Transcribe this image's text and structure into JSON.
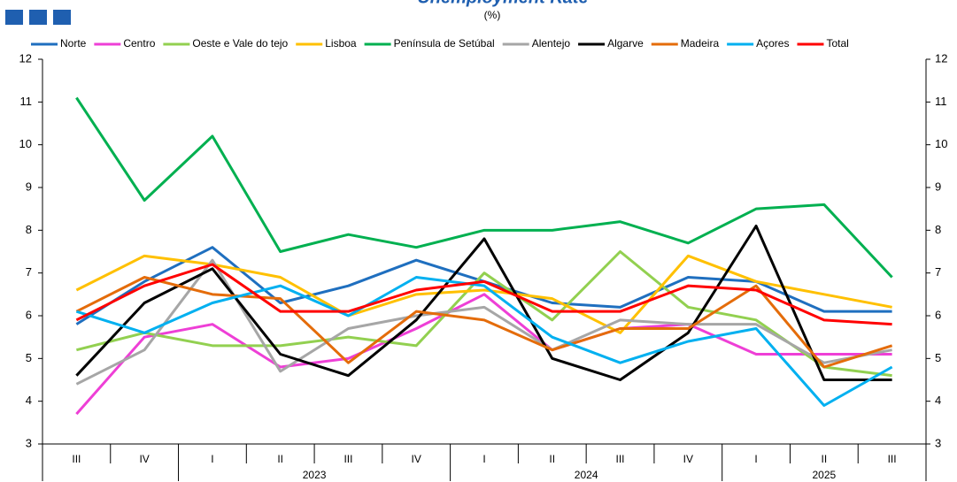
{
  "chart_data": {
    "type": "line",
    "title": "Unemployment Rate",
    "subtitle": "(%)",
    "categories": [
      "III",
      "IV",
      "I",
      "II",
      "III",
      "IV",
      "I",
      "II",
      "III",
      "IV",
      "I",
      "II",
      "III"
    ],
    "years": [
      null,
      null,
      "2023",
      "2023",
      "2023",
      "2023",
      "2024",
      "2024",
      "2024",
      "2024",
      "2025",
      "2025",
      "2025"
    ],
    "ylim": [
      3,
      12
    ],
    "yticks": [
      3,
      4,
      5,
      6,
      7,
      8,
      9,
      10,
      11,
      12
    ],
    "right_axis": true,
    "grid": false,
    "series": [
      {
        "name": "Norte",
        "color": "#1f6fbf",
        "values": [
          5.8,
          6.8,
          7.6,
          6.3,
          6.7,
          7.3,
          6.8,
          6.3,
          6.2,
          6.9,
          6.8,
          6.1,
          6.1
        ]
      },
      {
        "name": "Centro",
        "color": "#ee3fd6",
        "values": [
          3.7,
          5.5,
          5.8,
          4.8,
          5.0,
          5.7,
          6.5,
          5.2,
          5.7,
          5.8,
          5.1,
          5.1,
          5.1
        ]
      },
      {
        "name": "Oeste e Vale do tejo",
        "color": "#92d050",
        "values": [
          5.2,
          5.6,
          5.3,
          5.3,
          5.5,
          5.3,
          7.0,
          5.9,
          7.5,
          6.2,
          5.9,
          4.8,
          4.6
        ]
      },
      {
        "name": "Lisboa",
        "color": "#ffc000",
        "values": [
          6.6,
          7.4,
          7.2,
          6.9,
          6.0,
          6.5,
          6.6,
          6.4,
          5.6,
          7.4,
          6.8,
          6.5,
          6.2
        ]
      },
      {
        "name": "Península de Setúbal",
        "color": "#00b050",
        "values": [
          11.1,
          8.7,
          10.2,
          7.5,
          7.9,
          7.6,
          8.0,
          8.0,
          8.2,
          7.7,
          8.5,
          8.6,
          6.9
        ]
      },
      {
        "name": "Alentejo",
        "color": "#a6a6a6",
        "values": [
          4.4,
          5.2,
          7.3,
          4.7,
          5.7,
          6.0,
          6.2,
          5.2,
          5.9,
          5.8,
          5.8,
          4.9,
          5.2
        ]
      },
      {
        "name": "Algarve",
        "color": "#000000",
        "values": [
          4.6,
          6.3,
          7.1,
          5.1,
          4.6,
          5.9,
          7.8,
          5.0,
          4.5,
          5.6,
          8.1,
          4.5,
          4.5
        ]
      },
      {
        "name": "Madeira",
        "color": "#e46c0a",
        "values": [
          6.1,
          6.9,
          6.5,
          6.4,
          4.9,
          6.1,
          5.9,
          5.2,
          5.7,
          5.7,
          6.7,
          4.8,
          5.3
        ]
      },
      {
        "name": "Açores",
        "color": "#00b0f0",
        "values": [
          6.1,
          5.6,
          6.3,
          6.7,
          6.0,
          6.9,
          6.7,
          5.5,
          4.9,
          5.4,
          5.7,
          3.9,
          4.8
        ]
      },
      {
        "name": "Total",
        "color": "#ff0000",
        "values": [
          5.9,
          6.7,
          7.2,
          6.1,
          6.1,
          6.6,
          6.8,
          6.1,
          6.1,
          6.7,
          6.6,
          5.9,
          5.8
        ]
      }
    ]
  }
}
